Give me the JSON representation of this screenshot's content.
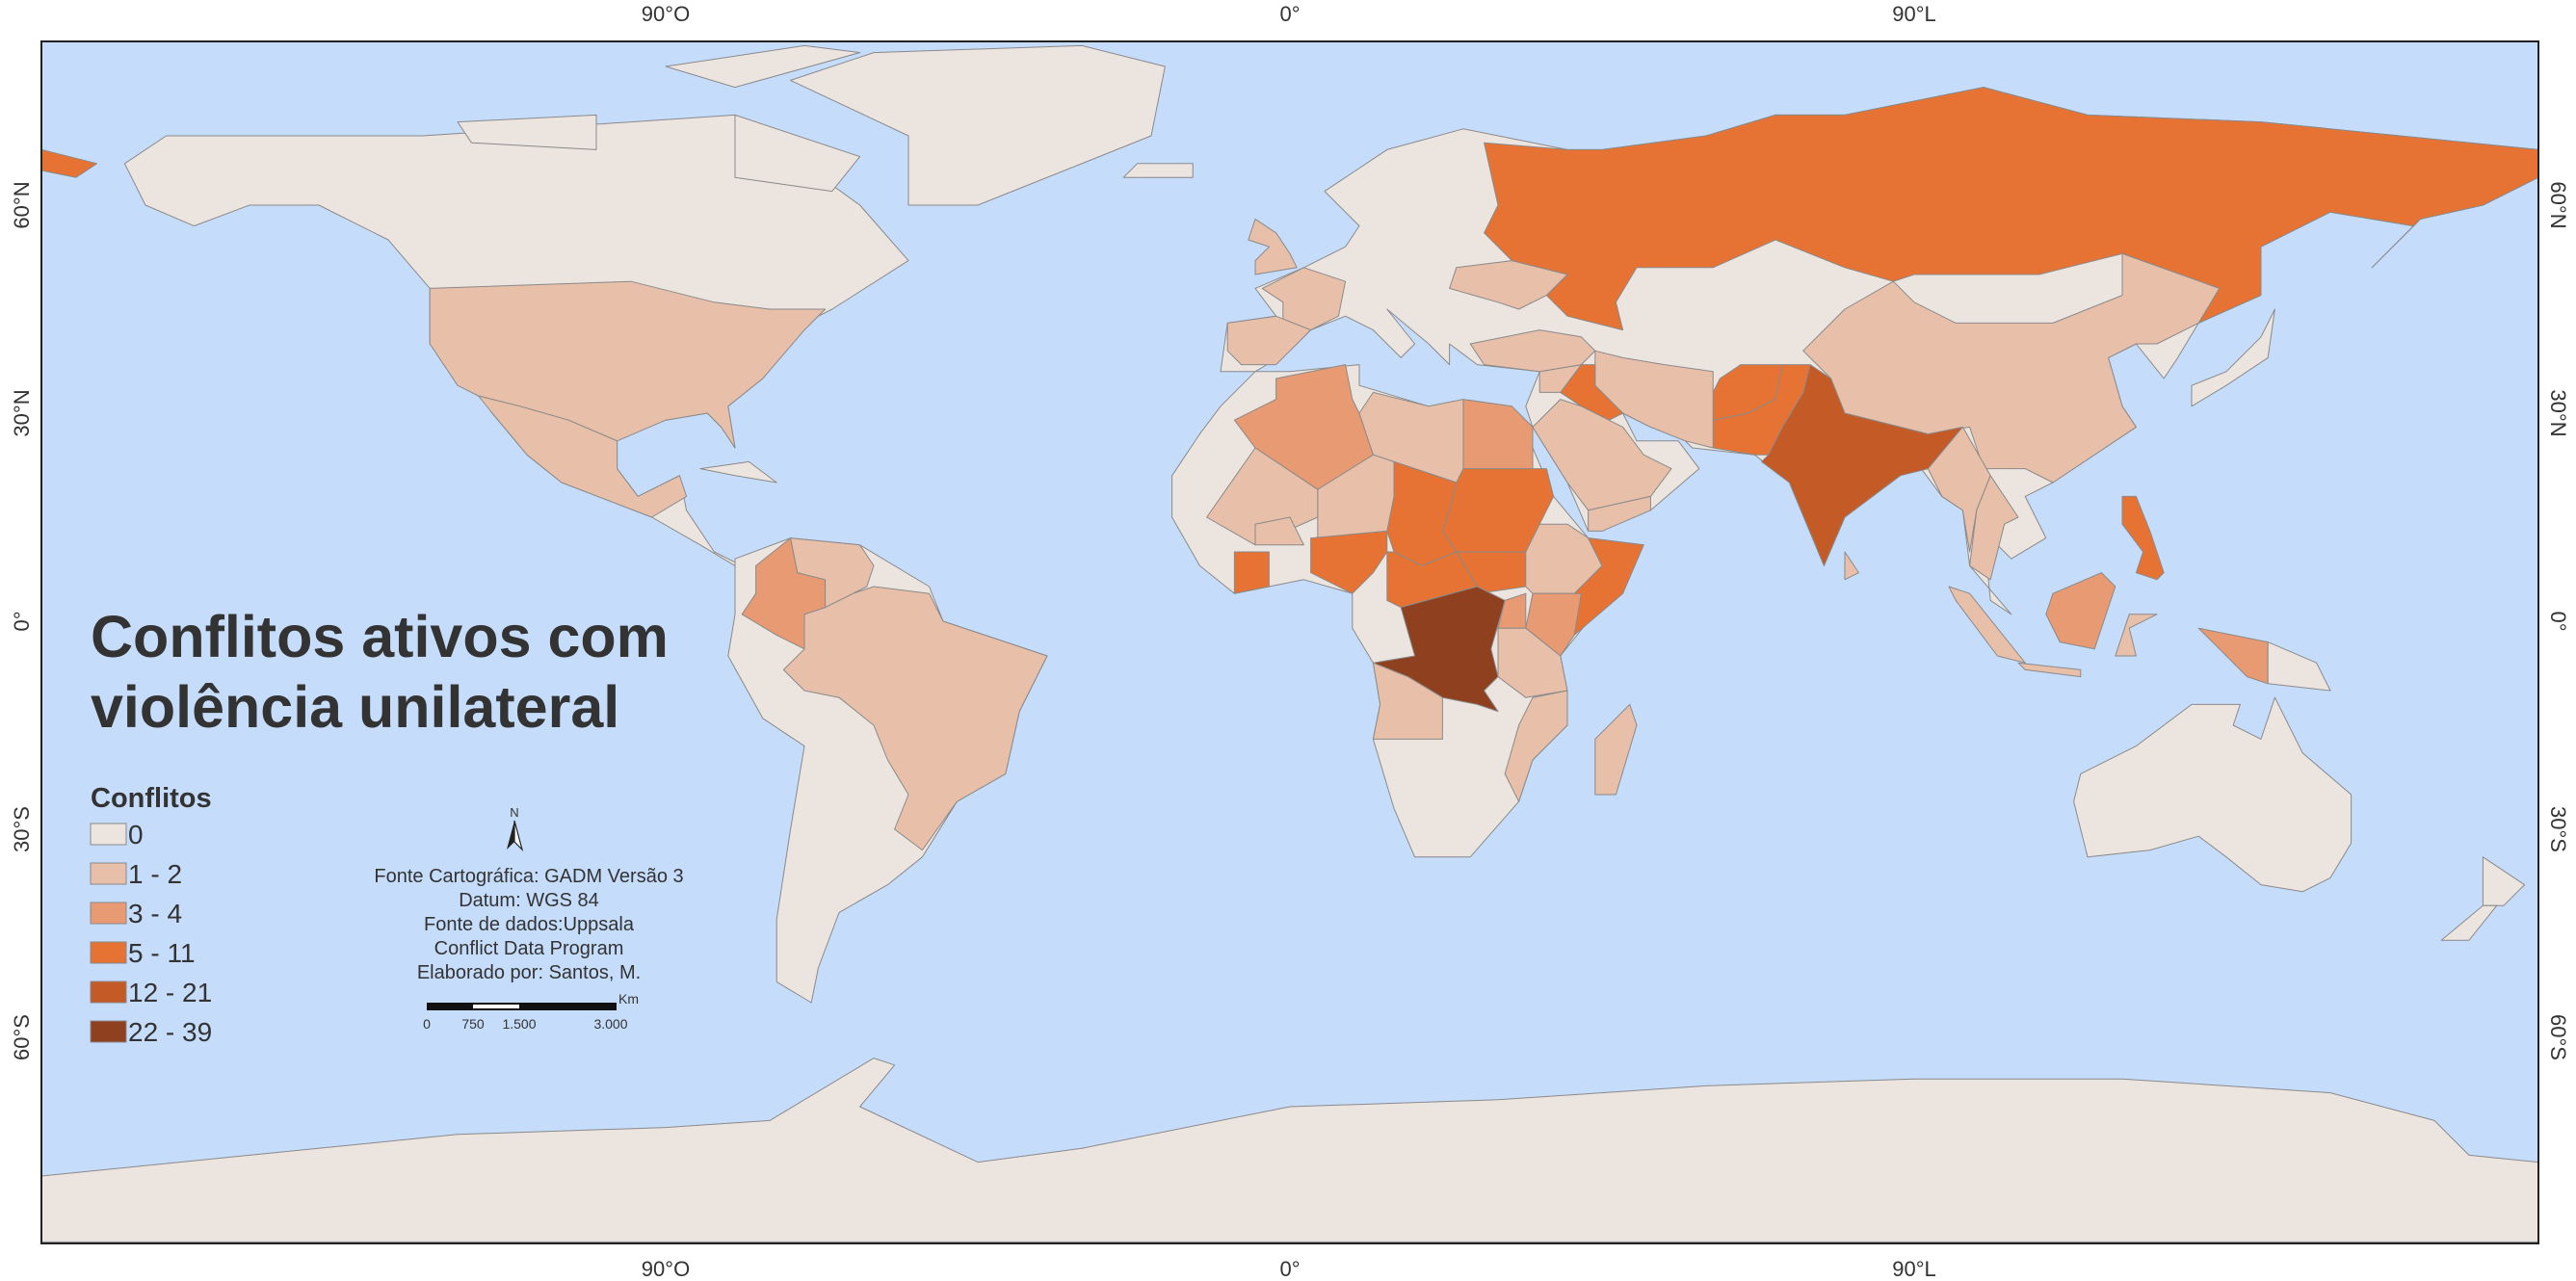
{
  "title_lines": [
    "Conflitos ativos com",
    "violência unilateral"
  ],
  "legend": {
    "title": "Conflitos",
    "items": [
      {
        "label": "0",
        "color": "#ece4df"
      },
      {
        "label": "1 - 2",
        "color": "#e8bfa9"
      },
      {
        "label": "3 - 4",
        "color": "#e89a72"
      },
      {
        "label": "5 - 11",
        "color": "#e67333"
      },
      {
        "label": "12 - 21",
        "color": "#c45a26"
      },
      {
        "label": "22 - 39",
        "color": "#8e401f"
      }
    ]
  },
  "credits": [
    "Fonte Cartográfica: GADM Versão 3",
    "Datum: WGS 84",
    "Fonte de dados:Uppsala",
    "Conflict Data Program",
    "Elaborado por: Santos, M."
  ],
  "north_label": "N",
  "scale_bar": {
    "unit": "Km",
    "labels": [
      "0",
      "750",
      "1.500",
      "3.000"
    ]
  },
  "longitude_labels": [
    "90°O",
    "0°",
    "90°L"
  ],
  "latitude_labels": [
    "60°N",
    "30°N",
    "0°",
    "30°S",
    "60°S"
  ]
}
